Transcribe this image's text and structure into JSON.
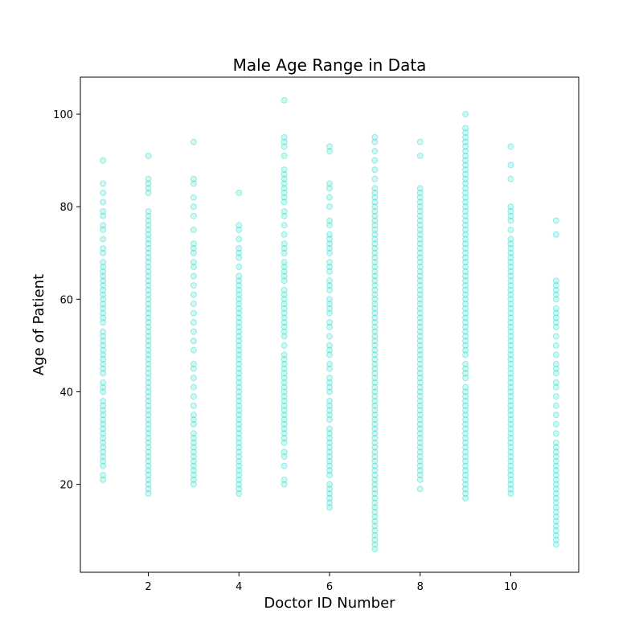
{
  "chart_data": {
    "type": "scatter",
    "title": "Male Age Range in Data",
    "xlabel": "Doctor ID Number",
    "ylabel": "Age of Patient",
    "xlim": [
      0.5,
      11.5
    ],
    "ylim": [
      1,
      108
    ],
    "xticks": [
      2,
      4,
      6,
      8,
      10
    ],
    "yticks": [
      20,
      40,
      60,
      80,
      100
    ],
    "grid": false,
    "legend": "none",
    "marker_color": "#40e0d0",
    "marker_alpha": 0.25,
    "series": [
      {
        "x": 1,
        "ages": [
          21,
          22,
          24,
          25,
          26,
          27,
          28,
          29,
          30,
          31,
          32,
          33,
          34,
          35,
          36,
          37,
          38,
          40,
          41,
          42,
          44,
          45,
          46,
          47,
          48,
          49,
          50,
          51,
          52,
          53,
          55,
          56,
          57,
          58,
          59,
          60,
          61,
          62,
          63,
          64,
          65,
          66,
          67,
          68,
          70,
          71,
          73,
          75,
          76,
          78,
          79,
          81,
          83,
          85,
          90
        ]
      },
      {
        "x": 2,
        "ages": [
          18,
          19,
          20,
          21,
          22,
          23,
          24,
          25,
          26,
          27,
          28,
          29,
          30,
          31,
          32,
          33,
          34,
          35,
          36,
          37,
          38,
          39,
          40,
          41,
          42,
          43,
          44,
          45,
          46,
          47,
          48,
          49,
          50,
          51,
          52,
          53,
          54,
          55,
          56,
          57,
          58,
          59,
          60,
          61,
          62,
          63,
          64,
          65,
          66,
          67,
          68,
          69,
          70,
          71,
          72,
          73,
          74,
          75,
          76,
          77,
          78,
          79,
          83,
          84,
          85,
          86,
          91
        ]
      },
      {
        "x": 3,
        "ages": [
          20,
          21,
          22,
          23,
          24,
          25,
          26,
          27,
          28,
          29,
          30,
          31,
          33,
          34,
          35,
          37,
          39,
          41,
          43,
          45,
          46,
          49,
          51,
          53,
          55,
          57,
          59,
          61,
          63,
          65,
          67,
          68,
          70,
          71,
          72,
          75,
          78,
          80,
          82,
          85,
          86,
          94
        ]
      },
      {
        "x": 4,
        "ages": [
          18,
          19,
          20,
          21,
          22,
          23,
          24,
          25,
          26,
          27,
          28,
          29,
          30,
          31,
          32,
          33,
          34,
          35,
          36,
          37,
          38,
          39,
          40,
          41,
          42,
          43,
          44,
          45,
          46,
          47,
          48,
          49,
          50,
          51,
          52,
          53,
          54,
          55,
          56,
          57,
          58,
          59,
          60,
          61,
          62,
          63,
          64,
          65,
          67,
          69,
          70,
          71,
          73,
          75,
          76,
          83
        ]
      },
      {
        "x": 5,
        "ages": [
          20,
          21,
          24,
          26,
          27,
          29,
          30,
          31,
          32,
          33,
          34,
          35,
          36,
          37,
          38,
          39,
          40,
          41,
          42,
          43,
          44,
          45,
          46,
          47,
          48,
          50,
          52,
          53,
          54,
          55,
          56,
          57,
          58,
          59,
          60,
          61,
          62,
          64,
          65,
          66,
          67,
          68,
          70,
          71,
          72,
          74,
          76,
          78,
          79,
          81,
          82,
          83,
          84,
          85,
          86,
          87,
          88,
          91,
          93,
          94,
          95,
          103
        ]
      },
      {
        "x": 6,
        "ages": [
          15,
          16,
          17,
          18,
          19,
          20,
          22,
          23,
          24,
          25,
          26,
          27,
          28,
          29,
          30,
          31,
          32,
          34,
          35,
          36,
          37,
          38,
          40,
          41,
          42,
          43,
          45,
          46,
          48,
          49,
          50,
          52,
          54,
          55,
          57,
          58,
          59,
          60,
          62,
          63,
          64,
          66,
          67,
          68,
          70,
          71,
          72,
          73,
          74,
          76,
          77,
          80,
          82,
          84,
          85,
          92,
          93
        ]
      },
      {
        "x": 7,
        "ages": [
          6,
          7,
          8,
          9,
          10,
          11,
          12,
          13,
          14,
          15,
          16,
          17,
          18,
          19,
          20,
          21,
          22,
          23,
          24,
          25,
          26,
          27,
          28,
          29,
          30,
          31,
          32,
          33,
          34,
          35,
          36,
          37,
          38,
          39,
          40,
          41,
          42,
          43,
          44,
          45,
          46,
          47,
          48,
          49,
          50,
          51,
          52,
          53,
          54,
          55,
          56,
          57,
          58,
          59,
          60,
          61,
          62,
          63,
          64,
          65,
          66,
          67,
          68,
          69,
          70,
          71,
          72,
          73,
          74,
          75,
          76,
          77,
          78,
          79,
          80,
          81,
          82,
          83,
          84,
          86,
          88,
          90,
          92,
          94,
          95
        ]
      },
      {
        "x": 8,
        "ages": [
          19,
          21,
          22,
          23,
          24,
          25,
          26,
          27,
          28,
          29,
          30,
          31,
          32,
          33,
          34,
          35,
          36,
          37,
          38,
          39,
          40,
          41,
          42,
          43,
          44,
          45,
          46,
          47,
          48,
          49,
          50,
          51,
          52,
          53,
          54,
          55,
          56,
          57,
          58,
          59,
          60,
          61,
          62,
          63,
          64,
          65,
          66,
          67,
          68,
          69,
          70,
          71,
          72,
          73,
          74,
          75,
          76,
          77,
          78,
          79,
          80,
          81,
          82,
          83,
          84,
          91,
          94
        ]
      },
      {
        "x": 9,
        "ages": [
          17,
          18,
          19,
          20,
          21,
          22,
          23,
          24,
          25,
          26,
          27,
          28,
          29,
          30,
          31,
          32,
          33,
          34,
          35,
          36,
          37,
          38,
          39,
          40,
          41,
          43,
          44,
          45,
          46,
          48,
          49,
          50,
          51,
          52,
          53,
          54,
          55,
          56,
          57,
          58,
          59,
          60,
          61,
          62,
          63,
          64,
          65,
          66,
          67,
          68,
          69,
          70,
          71,
          72,
          73,
          74,
          75,
          76,
          77,
          78,
          79,
          80,
          81,
          82,
          83,
          84,
          85,
          86,
          87,
          88,
          89,
          90,
          91,
          92,
          93,
          94,
          95,
          96,
          97,
          100
        ]
      },
      {
        "x": 10,
        "ages": [
          18,
          19,
          20,
          21,
          22,
          23,
          24,
          25,
          26,
          27,
          28,
          29,
          30,
          31,
          32,
          33,
          34,
          35,
          36,
          37,
          38,
          39,
          40,
          41,
          42,
          43,
          44,
          45,
          46,
          47,
          48,
          49,
          50,
          51,
          52,
          53,
          54,
          55,
          56,
          57,
          58,
          59,
          60,
          61,
          62,
          63,
          64,
          65,
          66,
          67,
          68,
          69,
          70,
          71,
          72,
          73,
          75,
          77,
          78,
          79,
          80,
          86,
          89,
          93
        ]
      },
      {
        "x": 11,
        "ages": [
          7,
          8,
          9,
          10,
          11,
          12,
          13,
          14,
          15,
          16,
          17,
          18,
          19,
          20,
          21,
          22,
          23,
          24,
          25,
          26,
          27,
          28,
          29,
          31,
          33,
          35,
          37,
          39,
          41,
          42,
          44,
          45,
          46,
          48,
          50,
          52,
          54,
          55,
          56,
          57,
          58,
          60,
          61,
          62,
          63,
          64,
          74,
          77
        ]
      }
    ]
  }
}
